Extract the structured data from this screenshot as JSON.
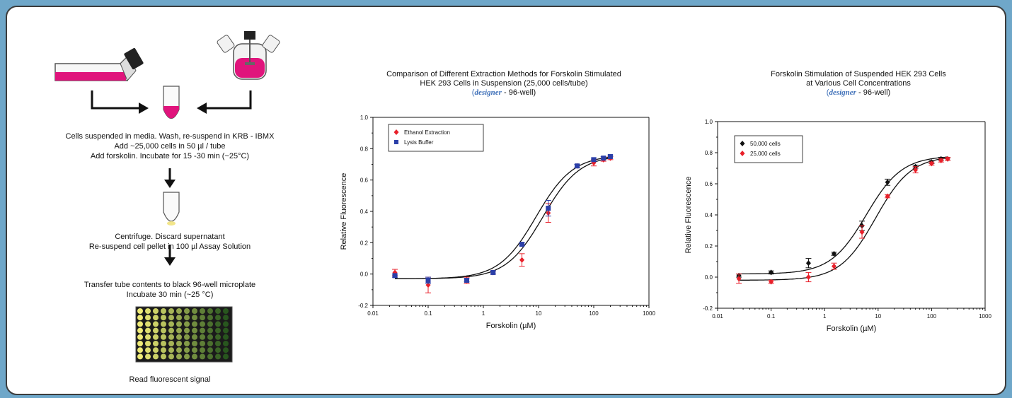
{
  "protocol": {
    "step1": [
      "Cells suspended in media.  Wash, re-suspend in KRB - IBMX",
      "Add ~25,000 cells in 50 µl / tube",
      "Add forskolin.  Incubate for 15 -30 min (~25°C)"
    ],
    "step2": [
      "Centrifuge.  Discard supernatant",
      "Re-suspend cell pellet in 100 µl Assay Solution"
    ],
    "step3": [
      "Transfer tube contents to black 96-well microplate",
      "Incubate 30 min (~25 °C)"
    ],
    "step4": "Read fluorescent signal",
    "colors": {
      "media": "#e0147c",
      "arrow": "#111111"
    },
    "icons": [
      "culture-flask-icon",
      "spinner-flask-icon",
      "tube-icon",
      "pellet-tube-icon",
      "microplate-icon",
      "arrow-icon"
    ]
  },
  "chart_data": [
    {
      "type": "scatter",
      "title_lines": [
        "Comparison of Different Extraction Methods for Forskolin Stimulated",
        "HEK 293 Cells in Suspension (25,000 cells/tube)"
      ],
      "subtitle_italic": "designer",
      "subtitle_rest": " - 96-well)",
      "subtitle_open": "(",
      "xlabel": "Forskolin (µM)",
      "ylabel": "Relative Fluorescence",
      "xscale": "log",
      "xlim": [
        0.01,
        1000
      ],
      "ylim": [
        -0.2,
        1.0
      ],
      "xticks": [
        0.01,
        0.1,
        1,
        10,
        100,
        1000
      ],
      "xtick_labels": [
        "0.01",
        "0.1",
        "1",
        "10",
        "100",
        "1000"
      ],
      "yticks": [
        -0.2,
        0,
        0.2,
        0.4,
        0.6,
        0.8,
        1.0
      ],
      "ytick_labels": [
        "-0.2",
        "0.0",
        "0.2",
        "0.4",
        "0.6",
        "0.8",
        "1.0"
      ],
      "legend_position": "top-left",
      "series": [
        {
          "name": "Ethanol Extraction",
          "color": "#e8202a",
          "marker": "diamond",
          "x": [
            0.025,
            0.1,
            0.5,
            1.5,
            5,
            15,
            50,
            100,
            150,
            200
          ],
          "y": [
            0.01,
            -0.07,
            -0.04,
            0.01,
            0.09,
            0.39,
            0.69,
            0.71,
            0.73,
            0.74
          ],
          "err": [
            0.02,
            0.05,
            0.02,
            0.01,
            0.04,
            0.06,
            0.01,
            0.02,
            0.01,
            0.01
          ],
          "fit": {
            "bottom": -0.03,
            "top": 0.76,
            "ec50": 12,
            "hill": 1.3
          }
        },
        {
          "name": "Lysis Buffer",
          "color": "#2b3fa8",
          "marker": "square",
          "x": [
            0.025,
            0.1,
            0.5,
            1.5,
            5,
            15,
            50,
            100,
            150,
            200
          ],
          "y": [
            -0.01,
            -0.04,
            -0.04,
            0.01,
            0.19,
            0.42,
            0.69,
            0.73,
            0.74,
            0.75
          ],
          "err": [
            0.01,
            0.02,
            0.01,
            0.01,
            0.01,
            0.05,
            0.01,
            0.01,
            0.01,
            0.01
          ],
          "fit": {
            "bottom": -0.03,
            "top": 0.76,
            "ec50": 9,
            "hill": 1.3
          }
        }
      ]
    },
    {
      "type": "scatter",
      "title_lines": [
        "Forskolin Stimulation of Suspended HEK 293 Cells",
        "at Various Cell Concentrations"
      ],
      "subtitle_italic": "designer",
      "subtitle_rest": " - 96-well)",
      "subtitle_open": "(",
      "xlabel": "Forskolin (µM)",
      "ylabel": "Relative Fluorescence",
      "xscale": "log",
      "xlim": [
        0.01,
        1000
      ],
      "ylim": [
        -0.2,
        1.0
      ],
      "xticks": [
        0.01,
        0.1,
        1,
        10,
        100,
        1000
      ],
      "xtick_labels": [
        "0.01",
        "0.1",
        "1",
        "10",
        "100",
        "1000"
      ],
      "yticks": [
        -0.2,
        0,
        0.2,
        0.4,
        0.6,
        0.8,
        1.0
      ],
      "ytick_labels": [
        "-0.2",
        "0.0",
        "0.2",
        "0.4",
        "0.6",
        "0.8",
        "1.0"
      ],
      "legend_position": "top-left",
      "series": [
        {
          "name": "50,000 cells",
          "color": "#111111",
          "marker": "diamond",
          "x": [
            0.025,
            0.1,
            0.5,
            1.5,
            5,
            15,
            50,
            100,
            150,
            200
          ],
          "y": [
            0.01,
            0.03,
            0.09,
            0.15,
            0.33,
            0.61,
            0.71,
            0.74,
            0.76,
            0.76
          ],
          "err": [
            0.01,
            0.01,
            0.03,
            0.01,
            0.03,
            0.02,
            0.01,
            0.01,
            0.01,
            0.01
          ],
          "fit": {
            "bottom": 0.02,
            "top": 0.78,
            "ec50": 6,
            "hill": 1.3
          }
        },
        {
          "name": "25,000 cells",
          "color": "#e8202a",
          "marker": "diamond",
          "x": [
            0.025,
            0.1,
            0.5,
            1.5,
            5,
            15,
            50,
            100,
            150,
            200
          ],
          "y": [
            -0.01,
            -0.03,
            0.0,
            0.07,
            0.29,
            0.52,
            0.69,
            0.73,
            0.75,
            0.76
          ],
          "err": [
            0.03,
            0.01,
            0.03,
            0.02,
            0.04,
            0.01,
            0.02,
            0.01,
            0.01,
            0.01
          ],
          "fit": {
            "bottom": -0.02,
            "top": 0.78,
            "ec50": 9,
            "hill": 1.3
          }
        }
      ]
    }
  ]
}
